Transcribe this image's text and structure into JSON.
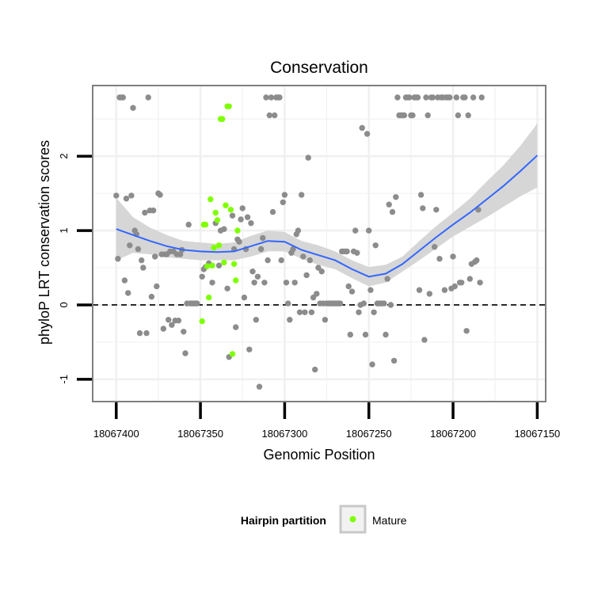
{
  "chart_data": {
    "type": "scatter",
    "title": "Conservation",
    "xlabel": "Genomic Position",
    "ylabel": "phyloP LRT conservation scores",
    "x_reversed": true,
    "xlim": [
      18067414,
      18067145
    ],
    "ylim": [
      -1.3,
      2.95
    ],
    "x_ticks": [
      18067400,
      18067350,
      18067300,
      18067250,
      18067200,
      18067150
    ],
    "x_tick_labels": [
      "18067400",
      "18067350",
      "18067300",
      "18067250",
      "18067200",
      "18067150"
    ],
    "y_ticks": [
      -1,
      0,
      1,
      2
    ],
    "y_tick_labels": [
      "-1",
      "0",
      "1",
      "2"
    ],
    "reference_line": {
      "y": 0,
      "style": "dashed"
    },
    "grid": true,
    "legend": {
      "title": "Hairpin partition",
      "entries": [
        {
          "label": "Mature",
          "color": "#7fff00"
        }
      ],
      "placement": "bottom"
    },
    "colors": {
      "other": "#8c8c8c",
      "mature": "#7fff00",
      "smooth": "#3366ff",
      "band": "#d4d4d4",
      "grid": "#f0f0f0",
      "panel_border": "#7f7f7f"
    },
    "series": [
      {
        "name": "Other",
        "color": "#8c8c8c",
        "points": [
          [
            18067400,
            1.47
          ],
          [
            18067399,
            0.62
          ],
          [
            18067398,
            2.79
          ],
          [
            18067397,
            2.79
          ],
          [
            18067396,
            2.79
          ],
          [
            18067395,
            0.33
          ],
          [
            18067394,
            1.43
          ],
          [
            18067393,
            0.16
          ],
          [
            18067392,
            0.8
          ],
          [
            18067391,
            1.47
          ],
          [
            18067390,
            2.65
          ],
          [
            18067389,
            1.0
          ],
          [
            18067388,
            0.95
          ],
          [
            18067387,
            0.75
          ],
          [
            18067386,
            -0.38
          ],
          [
            18067385,
            0.6
          ],
          [
            18067384,
            0.5
          ],
          [
            18067383,
            1.24
          ],
          [
            18067382,
            -0.38
          ],
          [
            18067381,
            2.79
          ],
          [
            18067380,
            1.27
          ],
          [
            18067379,
            0.11
          ],
          [
            18067378,
            1.27
          ],
          [
            18067377,
            0.65
          ],
          [
            18067376,
            0.25
          ],
          [
            18067375,
            1.5
          ],
          [
            18067374,
            1.48
          ],
          [
            18067373,
            0.68
          ],
          [
            18067372,
            -0.32
          ],
          [
            18067371,
            0.68
          ],
          [
            18067370,
            0.68
          ],
          [
            18067369,
            -0.2
          ],
          [
            18067368,
            0.72
          ],
          [
            18067367,
            -0.27
          ],
          [
            18067366,
            0.72
          ],
          [
            18067365,
            -0.21
          ],
          [
            18067364,
            0.68
          ],
          [
            18067363,
            -0.21
          ],
          [
            18067362,
            0.68
          ],
          [
            18067361,
            0.74
          ],
          [
            18067360,
            -0.36
          ],
          [
            18067359,
            -0.65
          ],
          [
            18067358,
            0.02
          ],
          [
            18067357,
            1.08
          ],
          [
            18067356,
            0.02
          ],
          [
            18067355,
            0.02
          ],
          [
            18067354,
            0.02
          ],
          [
            18067353,
            0.02
          ],
          [
            18067352,
            0.02
          ],
          [
            18067349,
            0.38
          ],
          [
            18067348,
            0.48
          ],
          [
            18067347,
            0.51
          ],
          [
            18067345,
            0.56
          ],
          [
            18067343,
            0.3
          ],
          [
            18067341,
            1.1
          ],
          [
            18067339,
            0.53
          ],
          [
            18067338,
            1.0
          ],
          [
            18067336,
            1.02
          ],
          [
            18067334,
            0.22
          ],
          [
            18067333,
            -0.7
          ],
          [
            18067331,
            1.2
          ],
          [
            18067330,
            0.75
          ],
          [
            18067329,
            -0.3
          ],
          [
            18067328,
            0.88
          ],
          [
            18067327,
            0.85
          ],
          [
            18067326,
            1.15
          ],
          [
            18067325,
            1.3
          ],
          [
            18067324,
            0.1
          ],
          [
            18067323,
            0.75
          ],
          [
            18067322,
            1.18
          ],
          [
            18067321,
            -0.6
          ],
          [
            18067320,
            1.1
          ],
          [
            18067319,
            0.45
          ],
          [
            18067318,
            0.3
          ],
          [
            18067317,
            -0.2
          ],
          [
            18067316,
            0.38
          ],
          [
            18067315,
            -1.1
          ],
          [
            18067314,
            0.75
          ],
          [
            18067313,
            0.9
          ],
          [
            18067312,
            0.3
          ],
          [
            18067311,
            2.79
          ],
          [
            18067310,
            0.6
          ],
          [
            18067309,
            2.55
          ],
          [
            18067308,
            2.79
          ],
          [
            18067307,
            1.25
          ],
          [
            18067306,
            2.55
          ],
          [
            18067305,
            2.79
          ],
          [
            18067304,
            2.79
          ],
          [
            18067303,
            2.79
          ],
          [
            18067302,
            0.6
          ],
          [
            18067301,
            1.38
          ],
          [
            18067300,
            1.48
          ],
          [
            18067299,
            0.3
          ],
          [
            18067298,
            0.02
          ],
          [
            18067297,
            -0.2
          ],
          [
            18067296,
            0.7
          ],
          [
            18067295,
            0.75
          ],
          [
            18067294,
            0.3
          ],
          [
            18067293,
            0.95
          ],
          [
            18067292,
            1.0
          ],
          [
            18067291,
            -0.1
          ],
          [
            18067290,
            1.48
          ],
          [
            18067289,
            0.65
          ],
          [
            18067288,
            -0.1
          ],
          [
            18067287,
            0.4
          ],
          [
            18067286,
            1.98
          ],
          [
            18067285,
            0.6
          ],
          [
            18067284,
            -0.1
          ],
          [
            18067283,
            0.1
          ],
          [
            18067282,
            -0.87
          ],
          [
            18067281,
            0.15
          ],
          [
            18067280,
            0.5
          ],
          [
            18067279,
            0.02
          ],
          [
            18067278,
            0.45
          ],
          [
            18067277,
            0.02
          ],
          [
            18067276,
            -0.2
          ],
          [
            18067275,
            0.02
          ],
          [
            18067274,
            0.02
          ],
          [
            18067273,
            0.02
          ],
          [
            18067272,
            0.02
          ],
          [
            18067271,
            0.02
          ],
          [
            18067270,
            0.02
          ],
          [
            18067269,
            0.02
          ],
          [
            18067268,
            0.02
          ],
          [
            18067267,
            0.02
          ],
          [
            18067266,
            0.72
          ],
          [
            18067265,
            0.72
          ],
          [
            18067264,
            0.72
          ],
          [
            18067263,
            0.72
          ],
          [
            18067262,
            0.25
          ],
          [
            18067261,
            -0.4
          ],
          [
            18067260,
            0.18
          ],
          [
            18067259,
            0.72
          ],
          [
            18067258,
            1.0
          ],
          [
            18067257,
            0.7
          ],
          [
            18067256,
            -0.1
          ],
          [
            18067255,
            0.0
          ],
          [
            18067254,
            2.38
          ],
          [
            18067253,
            0.02
          ],
          [
            18067252,
            -0.4
          ],
          [
            18067251,
            2.3
          ],
          [
            18067250,
            1.0
          ],
          [
            18067249,
            0.2
          ],
          [
            18067248,
            -0.8
          ],
          [
            18067247,
            -0.1
          ],
          [
            18067246,
            0.8
          ],
          [
            18067245,
            0.02
          ],
          [
            18067244,
            0.02
          ],
          [
            18067243,
            0.02
          ],
          [
            18067242,
            0.02
          ],
          [
            18067241,
            0.02
          ],
          [
            18067240,
            -0.4
          ],
          [
            18067239,
            0.35
          ],
          [
            18067238,
            1.35
          ],
          [
            18067237,
            0.0
          ],
          [
            18067236,
            1.25
          ],
          [
            18067235,
            -0.75
          ],
          [
            18067234,
            1.45
          ],
          [
            18067233,
            2.79
          ],
          [
            18067232,
            2.55
          ],
          [
            18067231,
            2.55
          ],
          [
            18067230,
            2.55
          ],
          [
            18067229,
            2.55
          ],
          [
            18067228,
            2.79
          ],
          [
            18067227,
            2.79
          ],
          [
            18067226,
            2.79
          ],
          [
            18067225,
            2.55
          ],
          [
            18067224,
            2.55
          ],
          [
            18067223,
            2.79
          ],
          [
            18067222,
            2.79
          ],
          [
            18067221,
            2.79
          ],
          [
            18067220,
            0.2
          ],
          [
            18067219,
            1.48
          ],
          [
            18067218,
            1.3
          ],
          [
            18067217,
            -0.47
          ],
          [
            18067216,
            2.79
          ],
          [
            18067215,
            2.55
          ],
          [
            18067214,
            0.15
          ],
          [
            18067213,
            2.79
          ],
          [
            18067212,
            2.79
          ],
          [
            18067211,
            0.78
          ],
          [
            18067210,
            1.28
          ],
          [
            18067209,
            2.79
          ],
          [
            18067208,
            0.62
          ],
          [
            18067207,
            2.79
          ],
          [
            18067206,
            2.79
          ],
          [
            18067205,
            0.2
          ],
          [
            18067204,
            2.79
          ],
          [
            18067203,
            2.79
          ],
          [
            18067202,
            2.79
          ],
          [
            18067201,
            0.22
          ],
          [
            18067200,
            0.65
          ],
          [
            18067199,
            0.25
          ],
          [
            18067198,
            2.79
          ],
          [
            18067197,
            2.55
          ],
          [
            18067196,
            0.3
          ],
          [
            18067195,
            0.3
          ],
          [
            18067194,
            2.79
          ],
          [
            18067193,
            2.79
          ],
          [
            18067192,
            -0.35
          ],
          [
            18067191,
            2.55
          ],
          [
            18067190,
            0.35
          ],
          [
            18067189,
            0.55
          ],
          [
            18067188,
            2.79
          ],
          [
            18067187,
            0.58
          ],
          [
            18067186,
            0.6
          ],
          [
            18067185,
            1.28
          ],
          [
            18067184,
            0.3
          ],
          [
            18067183,
            2.79
          ]
        ]
      },
      {
        "name": "Mature",
        "color": "#7fff00",
        "points": [
          [
            18067349,
            -0.22
          ],
          [
            18067348,
            1.08
          ],
          [
            18067347,
            1.08
          ],
          [
            18067346,
            0.52
          ],
          [
            18067345,
            0.1
          ],
          [
            18067344,
            1.42
          ],
          [
            18067343,
            0.53
          ],
          [
            18067342,
            0.77
          ],
          [
            18067341,
            1.24
          ],
          [
            18067340,
            1.14
          ],
          [
            18067339,
            0.8
          ],
          [
            18067338,
            2.5
          ],
          [
            18067337,
            2.5
          ],
          [
            18067336,
            0.57
          ],
          [
            18067335,
            1.34
          ],
          [
            18067334,
            2.67
          ],
          [
            18067333,
            2.67
          ],
          [
            18067332,
            1.28
          ],
          [
            18067331,
            -0.66
          ],
          [
            18067330,
            0.55
          ],
          [
            18067329,
            0.33
          ],
          [
            18067328,
            1.0
          ]
        ]
      },
      {
        "name": "Smooth fit",
        "type": "line",
        "color": "#3366ff",
        "x": [
          18067400,
          18067390,
          18067380,
          18067370,
          18067360,
          18067350,
          18067340,
          18067330,
          18067320,
          18067310,
          18067300,
          18067290,
          18067280,
          18067270,
          18067260,
          18067250,
          18067240,
          18067230,
          18067220,
          18067210,
          18067200,
          18067190,
          18067180,
          18067170,
          18067160,
          18067150
        ],
        "y": [
          1.02,
          0.94,
          0.86,
          0.79,
          0.74,
          0.72,
          0.71,
          0.72,
          0.79,
          0.86,
          0.85,
          0.74,
          0.67,
          0.6,
          0.48,
          0.38,
          0.42,
          0.55,
          0.73,
          0.91,
          1.08,
          1.24,
          1.42,
          1.6,
          1.8,
          2.01
        ],
        "ci_lower": [
          0.6,
          0.7,
          0.68,
          0.64,
          0.62,
          0.6,
          0.6,
          0.6,
          0.65,
          0.72,
          0.72,
          0.62,
          0.54,
          0.48,
          0.36,
          0.25,
          0.3,
          0.45,
          0.6,
          0.76,
          0.92,
          1.05,
          1.18,
          1.32,
          1.46,
          1.58
        ],
        "ci_upper": [
          1.44,
          1.18,
          1.04,
          0.94,
          0.86,
          0.84,
          0.82,
          0.84,
          0.93,
          1.0,
          0.98,
          0.86,
          0.8,
          0.72,
          0.6,
          0.51,
          0.54,
          0.65,
          0.86,
          1.06,
          1.24,
          1.43,
          1.66,
          1.88,
          2.14,
          2.44
        ]
      }
    ]
  }
}
